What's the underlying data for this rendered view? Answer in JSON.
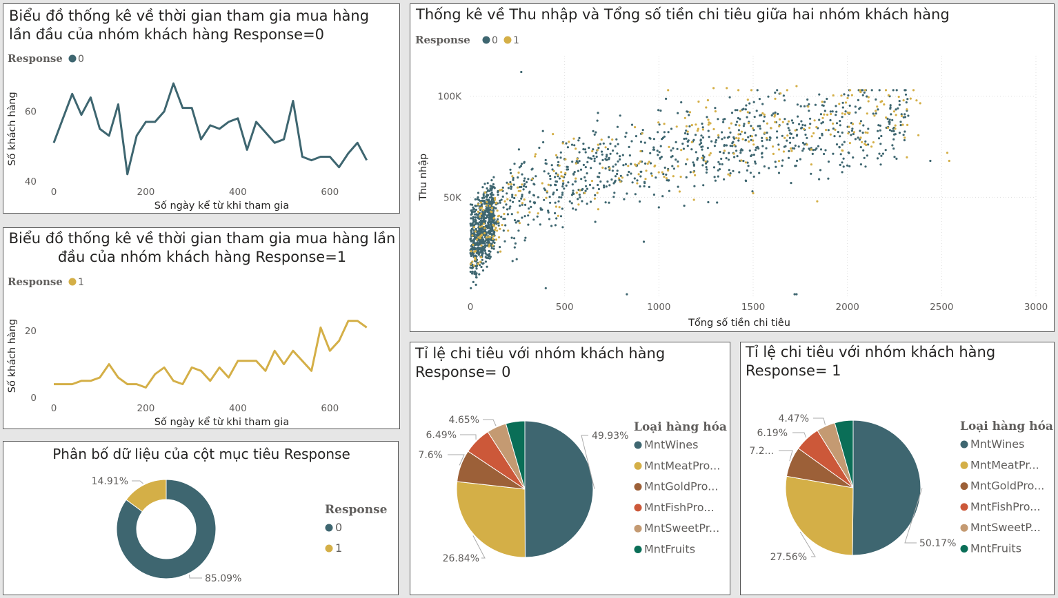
{
  "colors": {
    "resp0": "#3e6670",
    "resp1": "#d4af47"
  },
  "chart_data": [
    {
      "id": "line0",
      "type": "line",
      "title": "Biểu đồ thống kê về thời gian tham gia mua hàng lần đầu của nhóm khách hàng Response=0",
      "legend_title": "Response",
      "legend": [
        "0"
      ],
      "xlabel": "Số ngày kể từ khi tham gia",
      "ylabel": "Số khách hàng",
      "xticks": [
        "0",
        "200",
        "400",
        "600"
      ],
      "yticks": [
        "40",
        "60"
      ],
      "xlim": [
        0,
        700
      ],
      "ylim": [
        40,
        70
      ],
      "series": [
        {
          "x": [
            0,
            20,
            40,
            60,
            80,
            100,
            120,
            140,
            160,
            180,
            200,
            220,
            240,
            260,
            280,
            300,
            320,
            340,
            360,
            380,
            400,
            420,
            440,
            460,
            480,
            500,
            520,
            540,
            560,
            580,
            600,
            620,
            640,
            660,
            680
          ],
          "values": [
            51,
            58,
            65,
            59,
            64,
            55,
            53,
            62,
            42,
            53,
            57,
            57,
            60,
            68,
            61,
            61,
            52,
            56,
            55,
            57,
            58,
            49,
            57,
            54,
            51,
            52,
            63,
            47,
            46,
            47,
            47,
            44,
            48,
            51,
            46
          ]
        }
      ]
    },
    {
      "id": "line1",
      "type": "line",
      "title": "Biểu đồ thống kê về thời gian tham gia mua hàng lần đầu của nhóm khách hàng Response=1",
      "legend_title": "Response",
      "legend": [
        "1"
      ],
      "xlabel": "Số ngày kể từ khi tham gia",
      "ylabel": "Số khách hàng",
      "xticks": [
        "0",
        "200",
        "400",
        "600"
      ],
      "yticks": [
        "0",
        "20"
      ],
      "xlim": [
        0,
        700
      ],
      "ylim": [
        0,
        25
      ],
      "series": [
        {
          "x": [
            0,
            20,
            40,
            60,
            80,
            100,
            120,
            140,
            160,
            180,
            200,
            220,
            240,
            260,
            280,
            300,
            320,
            340,
            360,
            380,
            400,
            420,
            440,
            460,
            480,
            500,
            520,
            540,
            560,
            580,
            600,
            620,
            640,
            660,
            680
          ],
          "values": [
            4,
            4,
            4,
            5,
            5,
            6,
            10,
            6,
            4,
            4,
            3,
            7,
            9,
            5,
            4,
            9,
            8,
            5,
            9,
            6,
            11,
            11,
            11,
            8,
            14,
            10,
            14,
            11,
            8,
            21,
            14,
            17,
            23,
            23,
            21
          ]
        }
      ]
    },
    {
      "id": "scatter",
      "type": "scatter",
      "title": "Thống kê về Thu nhập và Tổng số tiền chi tiêu giữa hai nhóm khách hàng",
      "legend_title": "Response",
      "legend": [
        "0",
        "1"
      ],
      "xlabel": "Tổng số tiền chi tiêu",
      "ylabel": "Thu nhập",
      "xticks": [
        "0",
        "500",
        "1000",
        "1500",
        "2000",
        "2500",
        "3000"
      ],
      "yticks": [
        "50K",
        "100K"
      ],
      "xlim": [
        0,
        3000
      ],
      "ylim": [
        0,
        120000
      ],
      "grid": true,
      "series": [
        {
          "name": "0",
          "points": [
            [
              270,
              112000
            ],
            [
              1730,
              2000
            ],
            [
              1720,
              2000
            ],
            [
              400,
              5000
            ],
            [
              2440,
              68000
            ],
            [
              1000,
              45000
            ],
            [
              830,
              2000
            ],
            [
              920,
              28000
            ]
          ],
          "n_generated": 1500
        },
        {
          "name": "1",
          "points": [
            [
              1290,
              104000
            ],
            [
              1360,
              104000
            ],
            [
              1730,
              105000
            ],
            [
              2530,
              72000
            ],
            [
              2540,
              68000
            ],
            [
              1500,
              52000
            ],
            [
              1840,
              48000
            ],
            [
              1260,
              98000
            ]
          ],
          "n_generated": 330
        }
      ]
    },
    {
      "id": "donut",
      "type": "pie",
      "title": "Phân bố dữ liệu của cột mục tiêu Response",
      "legend_title": "Response",
      "labels": [
        "0",
        "1"
      ],
      "values": [
        85.09,
        14.91
      ],
      "value_labels": [
        "85.09%",
        "14.91%"
      ]
    },
    {
      "id": "pie0",
      "type": "pie",
      "title": "Tỉ lệ chi tiêu với nhóm khách hàng Response= 0",
      "legend_title": "Loại hàng hóa",
      "labels": [
        "MntWines",
        "MntMeatPro...",
        "MntGoldPro...",
        "MntFishPro...",
        "MntSweetPr...",
        "MntFruits"
      ],
      "values": [
        49.93,
        26.84,
        7.6,
        6.49,
        4.65,
        4.49
      ],
      "value_labels": [
        "49.93%",
        "26.84%",
        "7.6%",
        "6.49%",
        "4.65%",
        ""
      ]
    },
    {
      "id": "pie1",
      "type": "pie",
      "title": "Tỉ lệ chi tiêu với nhóm khách hàng Response= 1",
      "legend_title": "Loại hàng hóa",
      "labels": [
        "MntWines",
        "MntMeatPr...",
        "MntGoldPro...",
        "MntFishPro...",
        "MntSweetP...",
        "MntFruits"
      ],
      "values": [
        50.17,
        27.56,
        7.2,
        6.19,
        4.47,
        4.41
      ],
      "value_labels": [
        "50.17%",
        "27.56%",
        "7.2...",
        "6.19%",
        "4.47%",
        ""
      ]
    }
  ],
  "pie_colors": [
    "#3e6670",
    "#d4af47",
    "#9c6038",
    "#cc5839",
    "#c49a72",
    "#0a6e57"
  ]
}
